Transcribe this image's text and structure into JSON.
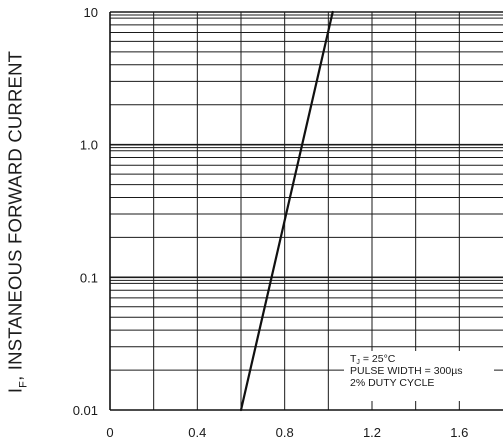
{
  "chart_data": {
    "type": "line",
    "title": "",
    "xlabel": "",
    "ylabel": "IF, INSTANEOUS FORWARD CURRENT",
    "ylabel_main": "I",
    "ylabel_sub": "F",
    "ylabel_rest": ", INSTANEOUS FORWARD CURRENT",
    "y_scale": "log",
    "xlim": [
      0,
      1.8
    ],
    "ylim": [
      0.01,
      10
    ],
    "x_ticks": [
      0,
      0.4,
      0.8,
      1.2,
      1.6
    ],
    "x_tick_labels": [
      "0",
      "0.4",
      "0.8",
      "1.2",
      "1.6"
    ],
    "y_ticks": [
      0.01,
      0.1,
      1,
      10
    ],
    "y_tick_labels": [
      "0.01",
      "0.1",
      "1.0",
      "10"
    ],
    "grid": true,
    "series": [
      {
        "x": [
          0.6,
          1.02
        ],
        "y": [
          0.01,
          10
        ]
      }
    ],
    "annotations": [
      {
        "text": "TJ = 25°C",
        "main": "T",
        "sub": "J",
        "rest": " = 25°C"
      },
      {
        "text": "PULSE WIDTH = 300µs"
      },
      {
        "text": "2% DUTY CYCLE"
      }
    ]
  }
}
